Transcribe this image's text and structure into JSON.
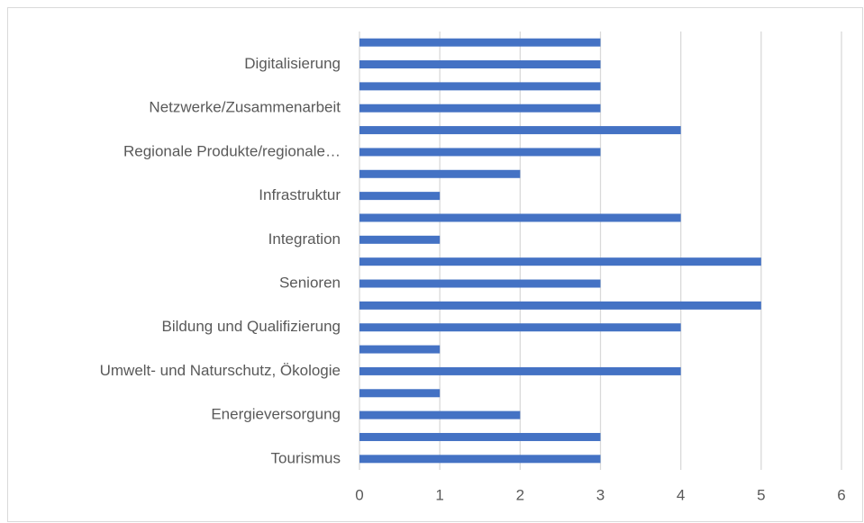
{
  "chart_data": {
    "type": "bar",
    "orientation": "horizontal",
    "categories": [
      "Tourismus",
      null,
      "Energieversorgung",
      null,
      "Umwelt- und Naturschutz, Ökologie",
      null,
      "Bildung und Qualifizierung",
      null,
      "Senioren",
      null,
      "Integration",
      null,
      "Infrastruktur",
      null,
      "Regionale Produkte/regionale…",
      null,
      "Netzwerke/Zusammenarbeit",
      null,
      "Digitalisierung",
      null
    ],
    "values": [
      3,
      3,
      2,
      1,
      4,
      1,
      4,
      5,
      3,
      5,
      1,
      4,
      1,
      2,
      3,
      4,
      3,
      3,
      3,
      3
    ],
    "color": "#4472c4",
    "xlim": [
      0,
      6
    ],
    "xticks": [
      0,
      1,
      2,
      3,
      4,
      5,
      6
    ],
    "grid": true
  }
}
